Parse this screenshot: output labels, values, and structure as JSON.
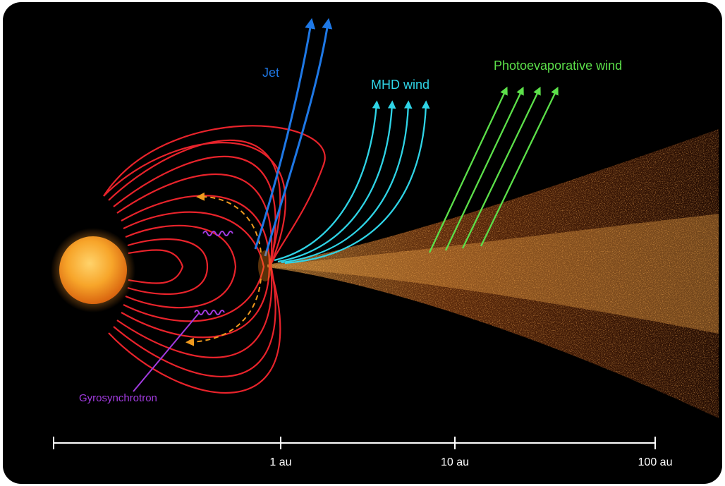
{
  "labels": {
    "jet": "Jet",
    "mhd_wind": "MHD wind",
    "photoevaporative_wind": "Photoevaporative wind",
    "gyrosynchrotron": "Gyrosynchrotron"
  },
  "scale": {
    "ticks": [
      "1 au",
      "10 au",
      "100 au"
    ]
  },
  "colors": {
    "background": "#000000",
    "field_lines": "#e8232b",
    "jet": "#1e78e6",
    "mhd_wind": "#2fd4e6",
    "photoevaporative_wind": "#5ce04a",
    "gyrosynchrotron": "#a23be0",
    "accretion_flow": "#f09a1e",
    "disk": "#e0661a",
    "star": "#f5a623",
    "scale_bar": "#ffffff"
  }
}
